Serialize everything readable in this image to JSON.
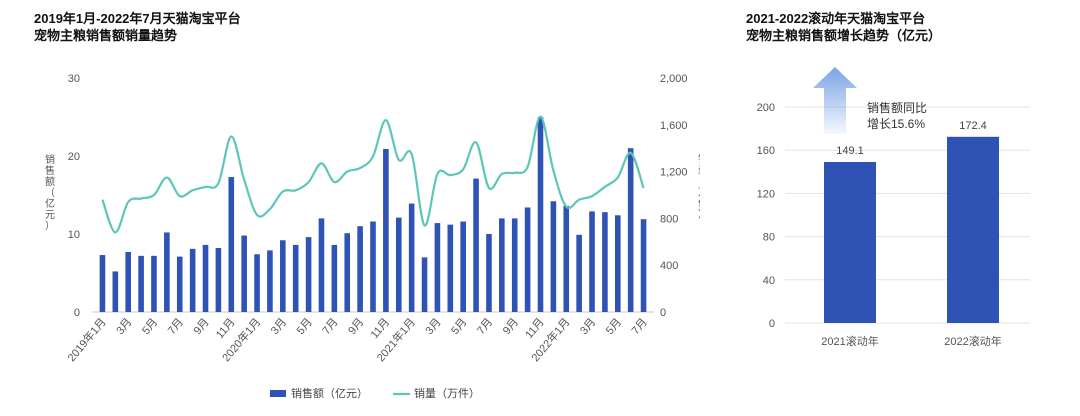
{
  "chart_data": [
    {
      "type": "bar+line",
      "title_lines": [
        "2019年1月-2022年7月天猫淘宝平台",
        "宠物主粮销售额销量趋势"
      ],
      "x": [
        "2019年1月",
        "2月",
        "3月",
        "4月",
        "5月",
        "6月",
        "7月",
        "8月",
        "9月",
        "10月",
        "11月",
        "12月",
        "2020年1月",
        "2月",
        "3月",
        "4月",
        "5月",
        "6月",
        "7月",
        "8月",
        "9月",
        "10月",
        "11月",
        "12月",
        "2021年1月",
        "2月",
        "3月",
        "4月",
        "5月",
        "6月",
        "7月",
        "8月",
        "9月",
        "10月",
        "11月",
        "12月",
        "2022年1月",
        "2月",
        "3月",
        "4月",
        "5月",
        "6月",
        "7月"
      ],
      "x_tick_labels": [
        "2019年1月",
        "3月",
        "5月",
        "7月",
        "9月",
        "11月",
        "2020年1月",
        "3月",
        "5月",
        "7月",
        "9月",
        "11月",
        "2021年1月",
        "3月",
        "5月",
        "7月",
        "9月",
        "11月",
        "2022年1月",
        "3月",
        "5月",
        "7月"
      ],
      "ylabel_left": "销售额（亿元）",
      "ylabel_right": "销量（万件）",
      "ylim_left": [
        0,
        30
      ],
      "yticks_left": [
        "0",
        "10",
        "20",
        "30"
      ],
      "ylim_right": [
        0,
        2000
      ],
      "yticks_right": [
        "0",
        "400",
        "800",
        "1,200",
        "1,600",
        "2,000"
      ],
      "series": [
        {
          "name": "销售额（亿元）",
          "type": "bar",
          "axis": "left",
          "color": "#2f52b5",
          "values": [
            7.3,
            5.2,
            7.7,
            7.2,
            7.2,
            10.2,
            7.1,
            8.1,
            8.6,
            8.2,
            17.3,
            9.8,
            7.4,
            7.9,
            9.2,
            8.6,
            9.6,
            12.0,
            8.6,
            10.1,
            11.0,
            11.6,
            20.9,
            12.1,
            13.9,
            7.0,
            11.4,
            11.2,
            11.6,
            17.1,
            10.0,
            12.0,
            12.0,
            13.4,
            25.0,
            14.2,
            13.6,
            9.9,
            12.9,
            12.8,
            12.4,
            21.0,
            11.9
          ]
        },
        {
          "name": "销量（万件）",
          "type": "line",
          "axis": "right",
          "color": "#5cc6b8",
          "values": [
            960,
            680,
            940,
            970,
            1000,
            1150,
            990,
            1040,
            1070,
            1100,
            1500,
            1130,
            830,
            880,
            1030,
            1040,
            1110,
            1270,
            1110,
            1200,
            1230,
            1330,
            1640,
            1300,
            1350,
            740,
            1180,
            1170,
            1220,
            1450,
            1060,
            1180,
            1190,
            1240,
            1670,
            1210,
            900,
            960,
            990,
            1070,
            1150,
            1360,
            1060
          ]
        }
      ],
      "legend_position": "bottom",
      "grid": false
    },
    {
      "type": "bar",
      "title_lines": [
        "2021-2022滚动年天猫淘宝平台",
        "宠物主粮销售额增长趋势（亿元）"
      ],
      "categories": [
        "2021滚动年",
        "2022滚动年"
      ],
      "values": [
        149.1,
        172.4
      ],
      "value_labels": [
        "149.1",
        "172.4"
      ],
      "ylim": [
        0,
        200
      ],
      "yticks": [
        "0",
        "40",
        "80",
        "120",
        "160",
        "200"
      ],
      "color": "#2f52b5",
      "annotation_lines": [
        "销售额同比",
        "增长15.6%"
      ],
      "arrow_color": "#7aa3e6",
      "grid": true
    }
  ]
}
